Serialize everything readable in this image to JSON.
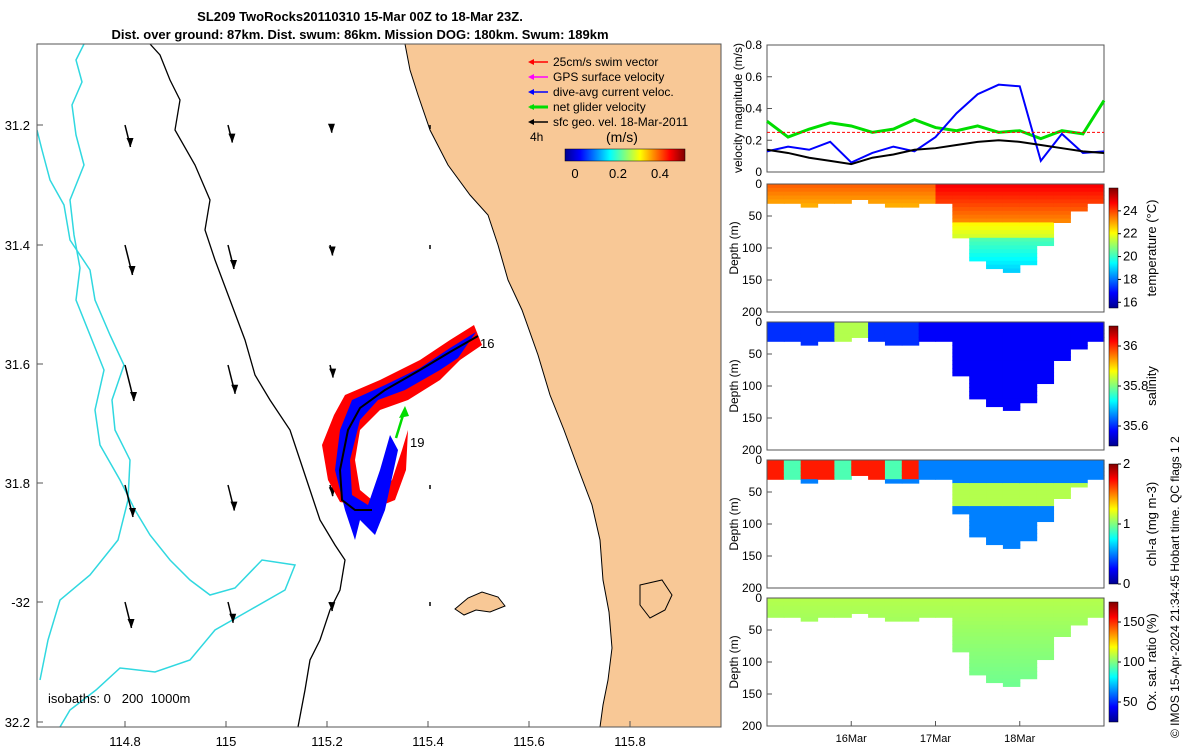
{
  "title": {
    "line1": "SL209 TwoRocks20110310 15-Mar 00Z to 18-Mar 23Z.",
    "line2": "Dist. over ground: 87km. Dist. swum: 86km. Mission DOG: 180km. Swum: 189km"
  },
  "map": {
    "lon_ticks": [
      "114.8",
      "115",
      "115.2",
      "115.4",
      "115.6",
      "115.8"
    ],
    "lat_ticks": [
      "31.2",
      "31.4",
      "31.6",
      "31.8",
      "-32",
      "32.2"
    ],
    "legend": [
      {
        "label": "25cm/s swim vector",
        "color": "#ff0000"
      },
      {
        "label": "GPS surface velocity",
        "color": "#ff00ff"
      },
      {
        "label": "dive-avg current veloc.",
        "color": "#0000ff"
      },
      {
        "label": "net glider velocity",
        "color": "#00dd00"
      },
      {
        "label": "sfc geo. vel. 18-Mar-2011",
        "color": "#000000"
      }
    ],
    "interval_label": "4h",
    "colorbar_unit": "(m/s)",
    "colorbar_ticks": [
      "0",
      "0.2",
      "0.4"
    ],
    "track_labels": [
      "16",
      "19"
    ],
    "isobath_label": "isobaths: 0   200  1000m",
    "colors": {
      "land": "#f8c896",
      "isobath": "#30d8e0",
      "swim": "#ff0000",
      "current": "#0000ff",
      "net": "#00dd00"
    }
  },
  "chart_data": [
    {
      "type": "line",
      "ylabel": "velocity magnitude (m/s)",
      "ylim": [
        0,
        0.8
      ],
      "yticks": [
        "0",
        "0.2",
        "0.4",
        "0.6",
        "0.8"
      ],
      "x_days": [
        0,
        0.25,
        0.5,
        0.75,
        1.0,
        1.25,
        1.5,
        1.75,
        2.0,
        2.25,
        2.5,
        2.75,
        3.0,
        3.25,
        3.5,
        3.75,
        4.0
      ],
      "series": [
        {
          "name": "net glider velocity",
          "color": "#00dd00",
          "values": [
            0.32,
            0.22,
            0.27,
            0.31,
            0.29,
            0.25,
            0.27,
            0.33,
            0.28,
            0.26,
            0.29,
            0.25,
            0.26,
            0.21,
            0.26,
            0.24,
            0.45
          ]
        },
        {
          "name": "dive-avg current veloc.",
          "color": "#0000ff",
          "values": [
            0.13,
            0.16,
            0.14,
            0.19,
            0.06,
            0.12,
            0.16,
            0.13,
            0.22,
            0.37,
            0.49,
            0.55,
            0.54,
            0.07,
            0.24,
            0.12,
            0.13
          ]
        },
        {
          "name": "sfc geo. vel.",
          "color": "#000000",
          "values": [
            0.14,
            0.12,
            0.09,
            0.07,
            0.05,
            0.09,
            0.11,
            0.14,
            0.15,
            0.17,
            0.19,
            0.2,
            0.19,
            0.17,
            0.15,
            0.13,
            0.12
          ]
        },
        {
          "name": "25cm/s swim vector",
          "color": "#ff0000",
          "values": [
            0.25,
            0.25,
            0.25,
            0.25,
            0.25,
            0.25,
            0.25,
            0.25,
            0.25,
            0.25,
            0.25,
            0.25,
            0.25,
            0.25,
            0.25,
            0.25,
            0.25
          ]
        }
      ]
    },
    {
      "type": "heatmap",
      "ylabel": "Depth (m)",
      "yticks": [
        "0",
        "50",
        "100",
        "150",
        "200"
      ],
      "colorbar_label": "temperature (°C)",
      "colorbar_ticks": [
        "16",
        "18",
        "20",
        "22",
        "24"
      ],
      "range": [
        15.5,
        26
      ],
      "max_depth_profile": [
        30,
        28,
        32,
        30,
        25,
        22,
        28,
        32,
        35,
        30,
        25,
        80,
        120,
        130,
        135,
        125,
        95,
        60,
        40,
        25
      ]
    },
    {
      "type": "heatmap",
      "ylabel": "Depth (m)",
      "yticks": [
        "0",
        "50",
        "100",
        "150",
        "200"
      ],
      "colorbar_label": "salinity",
      "colorbar_ticks": [
        "35.6",
        "35.8",
        "36"
      ],
      "range": [
        35.5,
        36.1
      ],
      "max_depth_profile": [
        30,
        28,
        32,
        30,
        25,
        22,
        28,
        32,
        35,
        30,
        25,
        80,
        120,
        130,
        135,
        125,
        95,
        60,
        40,
        25
      ]
    },
    {
      "type": "heatmap",
      "ylabel": "Depth (m)",
      "yticks": [
        "0",
        "50",
        "100",
        "150",
        "200"
      ],
      "colorbar_label": "chl-a (mg m-3)",
      "colorbar_ticks": [
        "0",
        "1",
        "2"
      ],
      "range": [
        0,
        2
      ],
      "max_depth_profile": [
        30,
        28,
        32,
        30,
        25,
        22,
        28,
        32,
        35,
        30,
        25,
        80,
        120,
        130,
        135,
        125,
        95,
        60,
        40,
        25
      ]
    },
    {
      "type": "heatmap",
      "ylabel": "Depth (m)",
      "yticks": [
        "0",
        "50",
        "100",
        "150",
        "200"
      ],
      "colorbar_label": "Ox. sat. ratio (%)",
      "colorbar_ticks": [
        "50",
        "100",
        "150"
      ],
      "range": [
        25,
        175
      ],
      "max_depth_profile": [
        30,
        28,
        32,
        30,
        25,
        22,
        28,
        32,
        35,
        30,
        25,
        80,
        120,
        130,
        135,
        125,
        95,
        60,
        40,
        25
      ]
    }
  ],
  "time_axis": {
    "ticks": [
      "16Mar",
      "17Mar",
      "18Mar"
    ]
  },
  "credit": "© IMOS 15-Apr-2024 21:34:45 Hobart time. QC flags 1  2"
}
